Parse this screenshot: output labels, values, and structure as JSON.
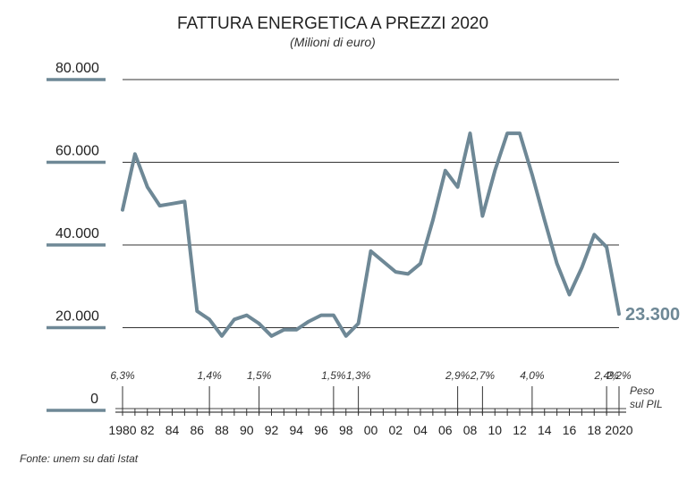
{
  "chart_data": {
    "type": "line",
    "title": "FATTURA ENERGETICA A PREZZI 2020",
    "subtitle": "(Milioni di euro)",
    "ylim": [
      0,
      80000
    ],
    "y_ticks": [
      {
        "value": 80000,
        "label": "80.000"
      },
      {
        "value": 60000,
        "label": "60.000"
      },
      {
        "value": 40000,
        "label": "40.000"
      },
      {
        "value": 20000,
        "label": "20.000"
      },
      {
        "value": 0,
        "label": "0"
      }
    ],
    "x_range": [
      1980,
      2020
    ],
    "x_tick_labels": [
      {
        "year": 1980,
        "label": "1980"
      },
      {
        "year": 1982,
        "label": "82"
      },
      {
        "year": 1984,
        "label": "84"
      },
      {
        "year": 1986,
        "label": "86"
      },
      {
        "year": 1988,
        "label": "88"
      },
      {
        "year": 1990,
        "label": "90"
      },
      {
        "year": 1992,
        "label": "92"
      },
      {
        "year": 1994,
        "label": "94"
      },
      {
        "year": 1996,
        "label": "96"
      },
      {
        "year": 1998,
        "label": "98"
      },
      {
        "year": 2000,
        "label": "00"
      },
      {
        "year": 2002,
        "label": "02"
      },
      {
        "year": 2004,
        "label": "04"
      },
      {
        "year": 2006,
        "label": "06"
      },
      {
        "year": 2008,
        "label": "08"
      },
      {
        "year": 2010,
        "label": "10"
      },
      {
        "year": 2012,
        "label": "12"
      },
      {
        "year": 2014,
        "label": "14"
      },
      {
        "year": 2016,
        "label": "16"
      },
      {
        "year": 2018,
        "label": "18"
      },
      {
        "year": 2020,
        "label": "2020"
      }
    ],
    "grid": true,
    "series": [
      {
        "color": "#6e8896",
        "x": [
          1980,
          1981,
          1982,
          1983,
          1984,
          1985,
          1986,
          1987,
          1988,
          1989,
          1990,
          1991,
          1992,
          1993,
          1994,
          1995,
          1996,
          1997,
          1998,
          1999,
          2000,
          2001,
          2002,
          2003,
          2004,
          2005,
          2006,
          2007,
          2008,
          2009,
          2010,
          2011,
          2012,
          2013,
          2014,
          2015,
          2016,
          2017,
          2018,
          2019,
          2020
        ],
        "values": [
          48500,
          62000,
          54000,
          49500,
          50000,
          50500,
          24000,
          22000,
          18000,
          22000,
          23000,
          21000,
          18000,
          19500,
          19500,
          21500,
          23000,
          23000,
          18000,
          21000,
          38500,
          36000,
          33500,
          33000,
          35500,
          46000,
          58000,
          54000,
          67000,
          47000,
          58000,
          67000,
          67000,
          57000,
          46000,
          35500,
          28000,
          34500,
          42500,
          39500,
          23300
        ]
      }
    ],
    "end_label": "23.300",
    "pil_annotations": [
      {
        "year": 1980,
        "label": "6,3%"
      },
      {
        "year": 1987,
        "label": "1,4%"
      },
      {
        "year": 1991,
        "label": "1,5%"
      },
      {
        "year": 1997,
        "label": "1,5%"
      },
      {
        "year": 1999,
        "label": "1,3%"
      },
      {
        "year": 2007,
        "label": "2,9%"
      },
      {
        "year": 2009,
        "label": "2,7%"
      },
      {
        "year": 2013,
        "label": "4,0%"
      },
      {
        "year": 2019,
        "label": "2,4%"
      },
      {
        "year": 2020,
        "label": "2,2%"
      }
    ],
    "pil_legend": [
      "Peso",
      "sul PIL"
    ],
    "source": "Fonte: unem su dati Istat"
  }
}
